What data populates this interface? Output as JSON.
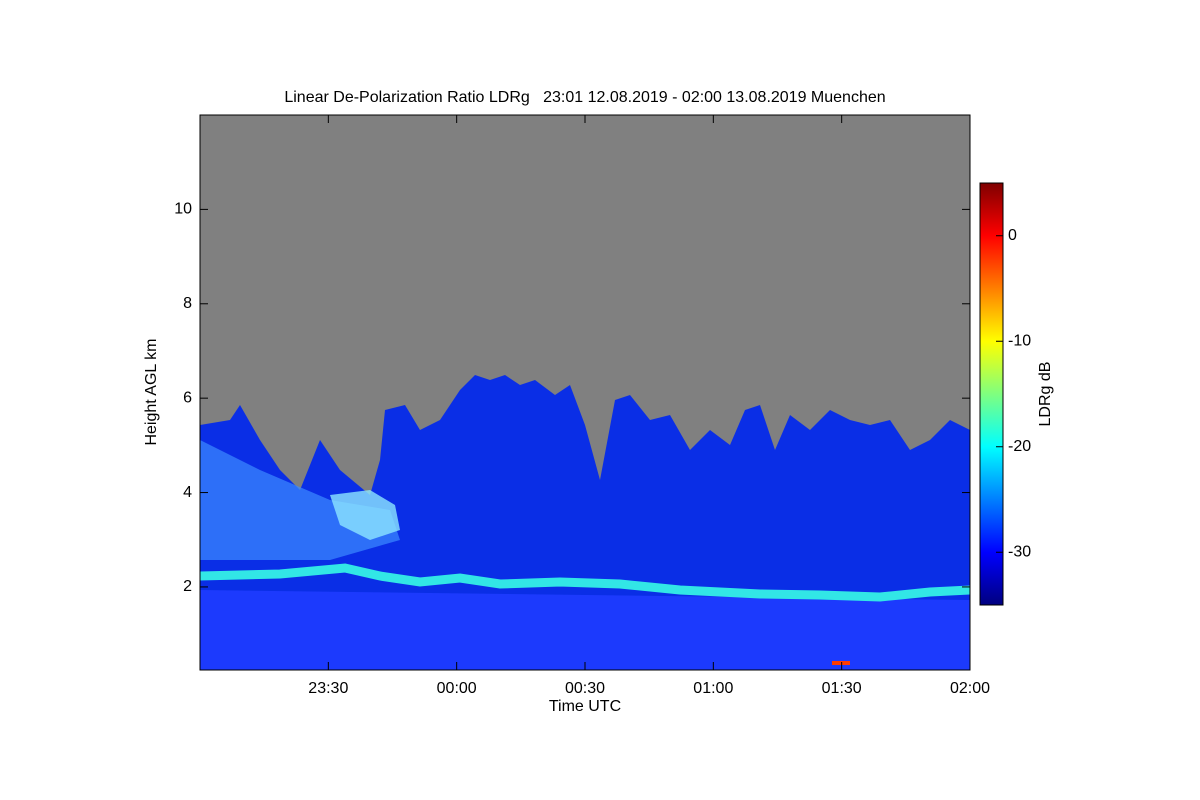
{
  "chart_data": {
    "type": "heatmap",
    "title": "Linear De-Polarization Ratio LDRg   23:01 12.08.2019 - 02:00 13.08.2019 Muenchen",
    "x_label": "Time UTC",
    "y_label": "Height AGL km",
    "colorbar_label": "LDRg dB",
    "xlim": [
      23.0,
      26.0
    ],
    "xticks": [
      {
        "value": 23.5,
        "label": "23:30"
      },
      {
        "value": 24.0,
        "label": "00:00"
      },
      {
        "value": 24.5,
        "label": "00:30"
      },
      {
        "value": 25.0,
        "label": "01:00"
      },
      {
        "value": 25.5,
        "label": "01:30"
      },
      {
        "value": 26.0,
        "label": "02:00"
      }
    ],
    "ylim": [
      0.24,
      12
    ],
    "yticks": [
      2,
      4,
      6,
      8,
      10
    ],
    "clim": [
      -35,
      5
    ],
    "cticks": [
      0,
      -10,
      -20,
      -30
    ],
    "colormap": [
      "#00007f",
      "#0000ff",
      "#007fff",
      "#00ffff",
      "#7fff7f",
      "#ffff00",
      "#ff7f00",
      "#ff0000",
      "#7f0000"
    ],
    "background_color": "#808080"
  }
}
